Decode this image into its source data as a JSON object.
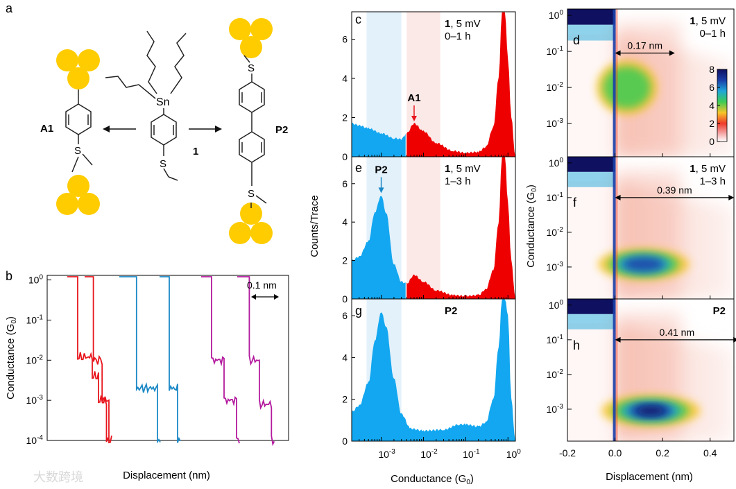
{
  "figure": {
    "panel_letters": [
      "a",
      "b",
      "c",
      "d",
      "e",
      "f",
      "g",
      "h"
    ],
    "scheme": {
      "center_label": "1",
      "sn_label": "Sn",
      "s_label": "S",
      "left_product": "A1",
      "right_product": "P2"
    },
    "watermark": "大数跨境"
  },
  "chart_data": [
    {
      "panel": "b",
      "type": "line",
      "xlabel": "Displacement (nm)",
      "ylabel": "Conductance (G0)",
      "yscale": "log",
      "ylim": [
        0.0001,
        1.3
      ],
      "yticks": [
        "10^0",
        "10^-1",
        "10^-2",
        "10^-3",
        "10^-4"
      ],
      "scale_bar_label": "0.1 nm",
      "colors": {
        "red": "#e8141c",
        "blue": "#1b88c6",
        "magenta": "#b3199d"
      },
      "series": [
        {
          "color": "red",
          "steps": [
            [
              0.0,
              1.2
            ],
            [
              0.25,
              0.012
            ],
            [
              0.6,
              0.004
            ],
            [
              0.75,
              0.001
            ],
            [
              1.0,
              0.0001
            ]
          ]
        },
        {
          "color": "red",
          "steps": [
            [
              0.0,
              1.2
            ],
            [
              0.3,
              0.01
            ],
            [
              0.6,
              0.001
            ],
            [
              0.75,
              0.0001
            ]
          ]
        },
        {
          "color": "blue",
          "steps": [
            [
              0.0,
              1.2
            ],
            [
              0.45,
              0.002
            ],
            [
              1.0,
              0.0001
            ]
          ]
        },
        {
          "color": "blue",
          "steps": [
            [
              0.0,
              1.2
            ],
            [
              0.35,
              0.002
            ],
            [
              0.65,
              0.0001
            ]
          ]
        },
        {
          "color": "magenta",
          "steps": [
            [
              0.0,
              1.2
            ],
            [
              0.25,
              0.01
            ],
            [
              0.55,
              0.001
            ],
            [
              0.85,
              0.0001
            ]
          ]
        },
        {
          "color": "magenta",
          "steps": [
            [
              0.0,
              1.2
            ],
            [
              0.3,
              0.01
            ],
            [
              0.55,
              0.0008
            ],
            [
              0.85,
              0.0001
            ]
          ]
        }
      ]
    },
    {
      "panel": "c",
      "type": "area",
      "xscale": "log",
      "xlim": [
        0.0002,
        1.5
      ],
      "ylim": [
        0,
        7.4
      ],
      "yticks": [
        0,
        2,
        4,
        6
      ],
      "annotation": {
        "label": "A1",
        "x": 0.006
      },
      "legend_bold": "1",
      "legend": ", 5 mV",
      "legend_line2": "0–1 h",
      "shaded_blue": [
        0.00045,
        0.003
      ],
      "shaded_red": [
        0.004,
        0.025
      ],
      "split_at": 0.004,
      "points": [
        [
          0.0002,
          1.7
        ],
        [
          0.0003,
          1.6
        ],
        [
          0.0005,
          1.45
        ],
        [
          0.001,
          1.2
        ],
        [
          0.002,
          0.95
        ],
        [
          0.003,
          0.9
        ],
        [
          0.004,
          1.2
        ],
        [
          0.006,
          1.7
        ],
        [
          0.01,
          1.3
        ],
        [
          0.02,
          0.7
        ],
        [
          0.05,
          0.3
        ],
        [
          0.1,
          0.2
        ],
        [
          0.2,
          0.25
        ],
        [
          0.3,
          0.5
        ],
        [
          0.45,
          1.5
        ],
        [
          0.6,
          4.0
        ],
        [
          0.72,
          7.4
        ],
        [
          0.85,
          7.4
        ],
        [
          1.0,
          5.0
        ],
        [
          1.2,
          2.0
        ],
        [
          1.5,
          0
        ]
      ]
    },
    {
      "panel": "e",
      "type": "area",
      "xscale": "log",
      "xlim": [
        0.0002,
        1.5
      ],
      "ylim": [
        0,
        7.4
      ],
      "yticks": [
        0,
        2,
        4,
        6
      ],
      "annotation": {
        "label": "P2",
        "x": 0.001
      },
      "legend_bold": "1",
      "legend": ", 5 mV",
      "legend_line2": "1–3 h",
      "ylabel": "Counts/Trace",
      "shaded_blue": [
        0.00045,
        0.003
      ],
      "shaded_red": [
        0.004,
        0.025
      ],
      "split_at": 0.004,
      "points": [
        [
          0.0002,
          2.0
        ],
        [
          0.0003,
          2.2
        ],
        [
          0.0005,
          3.0
        ],
        [
          0.0007,
          4.5
        ],
        [
          0.001,
          5.4
        ],
        [
          0.0013,
          4.5
        ],
        [
          0.002,
          1.8
        ],
        [
          0.003,
          0.9
        ],
        [
          0.004,
          0.8
        ],
        [
          0.006,
          1.25
        ],
        [
          0.01,
          0.9
        ],
        [
          0.02,
          0.45
        ],
        [
          0.05,
          0.2
        ],
        [
          0.1,
          0.15
        ],
        [
          0.2,
          0.2
        ],
        [
          0.3,
          0.5
        ],
        [
          0.45,
          1.5
        ],
        [
          0.6,
          4.0
        ],
        [
          0.72,
          7.4
        ],
        [
          0.85,
          7.4
        ],
        [
          1.0,
          5.0
        ],
        [
          1.2,
          2.0
        ],
        [
          1.5,
          0
        ]
      ]
    },
    {
      "panel": "g",
      "type": "area",
      "xscale": "log",
      "xlim": [
        0.0002,
        1.5
      ],
      "ylim": [
        0,
        6.8
      ],
      "yticks": [
        0,
        2,
        4,
        6
      ],
      "legend_bold": "P2",
      "xlabel": "Conductance (G0)",
      "xticks": [
        "10^-3",
        "10^-2",
        "10^-1",
        "10^0"
      ],
      "shaded_blue": [
        0.00045,
        0.003
      ],
      "points": [
        [
          0.0002,
          1.4
        ],
        [
          0.0003,
          1.7
        ],
        [
          0.0005,
          2.8
        ],
        [
          0.0007,
          4.8
        ],
        [
          0.001,
          6.2
        ],
        [
          0.0013,
          5.5
        ],
        [
          0.002,
          3.0
        ],
        [
          0.003,
          1.3
        ],
        [
          0.005,
          0.6
        ],
        [
          0.01,
          0.5
        ],
        [
          0.03,
          0.55
        ],
        [
          0.07,
          0.8
        ],
        [
          0.1,
          0.8
        ],
        [
          0.2,
          0.7
        ],
        [
          0.3,
          0.9
        ],
        [
          0.45,
          2.0
        ],
        [
          0.6,
          4.5
        ],
        [
          0.72,
          6.8
        ],
        [
          0.85,
          6.8
        ],
        [
          1.0,
          6.0
        ],
        [
          1.2,
          2.0
        ],
        [
          1.5,
          0
        ]
      ]
    },
    {
      "panel": "d",
      "type": "heatmap",
      "xlim": [
        -0.2,
        0.5
      ],
      "yscale": "log",
      "ylim": [
        0.00012,
        1.5
      ],
      "legend_bold": "1",
      "legend": ", 5 mV",
      "legend_line2": "0–1 h",
      "arrow_label": "0.17 nm",
      "arrow_len_nm": 0.17,
      "colorbar_ticks": [
        8,
        6,
        4,
        2,
        0
      ],
      "blobs": [
        {
          "x": 0.05,
          "y": 0.01,
          "sx": 0.08,
          "sy": 0.5,
          "v": 0.35
        }
      ]
    },
    {
      "panel": "f",
      "type": "heatmap",
      "xlim": [
        -0.2,
        0.5
      ],
      "yscale": "log",
      "ylim": [
        0.00012,
        1.5
      ],
      "legend_bold": "1",
      "legend": ", 5 mV",
      "legend_line2": "1–3 h",
      "ylabel": "Conductance (G0)",
      "arrow_label": "0.39 nm",
      "arrow_len_nm": 0.39,
      "blobs": [
        {
          "x": 0.12,
          "y": 0.0012,
          "sx": 0.12,
          "sy": 0.3,
          "v": 0.7
        }
      ]
    },
    {
      "panel": "h",
      "type": "heatmap",
      "xlim": [
        -0.2,
        0.5
      ],
      "yscale": "log",
      "ylim": [
        0.00012,
        1.5
      ],
      "legend_bold": "P2",
      "arrow_label": "0.41 nm",
      "arrow_len_nm": 0.41,
      "xlabel": "Displacement (nm)",
      "xticks": [
        -0.2,
        0.0,
        0.2,
        0.4
      ],
      "blobs": [
        {
          "x": 0.15,
          "y": 0.0009,
          "sx": 0.13,
          "sy": 0.3,
          "v": 1.0
        }
      ]
    }
  ]
}
